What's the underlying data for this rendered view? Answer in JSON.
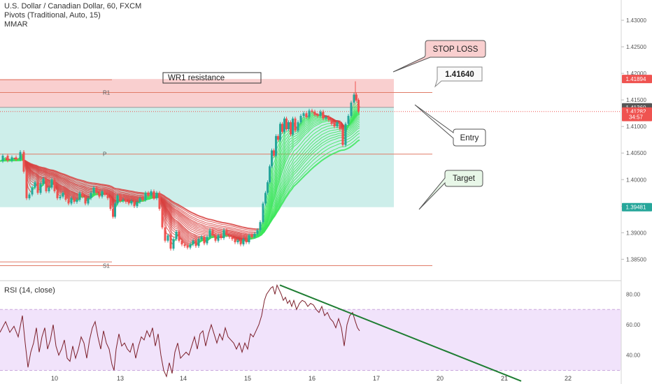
{
  "legend": {
    "title": "U.S. Dollar / Canadian Dollar, 60, FXCM",
    "line2": "Pivots (Traditional, Auto, 15)",
    "line3": "MMAR",
    "rsi": "RSI (14, close)"
  },
  "colors": {
    "bull": "#26a69a",
    "bear": "#ef5350",
    "stop_zone": "#f9cfcf",
    "target_zone": "#cdeeea",
    "rsi_band": "#f1e3fb",
    "trend": "#1e7d32",
    "pivot": "#e07b67"
  },
  "chart_data": [
    {
      "type": "candlestick",
      "title": "U.S. Dollar / Canadian Dollar, 60, FXCM",
      "x_ticks": [
        "10",
        "13",
        "14",
        "15",
        "16",
        "17",
        "20",
        "21",
        "22"
      ],
      "y_ticks": [
        "1.38500",
        "1.39000",
        "1.39500",
        "1.40000",
        "1.40500",
        "1.41000",
        "1.41500",
        "1.42000",
        "1.42500",
        "1.43000"
      ],
      "ylim": [
        1.3815,
        1.4325
      ],
      "price_labels": [
        {
          "value": 1.41894,
          "text": "1.41894",
          "color": "#ef5350"
        },
        {
          "value": 1.4136,
          "text": "1.41360",
          "color": "#555555"
        },
        {
          "value": 1.41282,
          "text": "1.41282",
          "color": "#ef5350"
        },
        {
          "value": 1.41178,
          "text": "34:57",
          "color": "#ef5350"
        },
        {
          "value": 1.39481,
          "text": "1.39481",
          "color": "#26a69a"
        }
      ],
      "pivots": [
        {
          "name": "R1",
          "value": 1.4164
        },
        {
          "name": "P",
          "value": 1.4048
        },
        {
          "name": "S1",
          "value": 1.3838
        }
      ],
      "annotations": {
        "wr1": "WR1 resistance",
        "stop_loss": "STOP LOSS",
        "entry_value": "1.41640",
        "entry": "Entry",
        "target": "Target"
      },
      "stop_zone": {
        "from": 1.4136,
        "to": 1.41894
      },
      "target_zone": {
        "from": 1.39481,
        "to": 1.4136
      },
      "close_path": [
        [
          0,
          1.4035
        ],
        [
          8,
          1.4045
        ],
        [
          14,
          1.4036
        ],
        [
          20,
          1.4042
        ],
        [
          26,
          1.4038
        ],
        [
          32,
          1.4052
        ],
        [
          36,
          1.4015
        ],
        [
          40,
          1.3965
        ],
        [
          44,
          1.3972
        ],
        [
          48,
          1.3985
        ],
        [
          52,
          1.3995
        ],
        [
          56,
          1.3975
        ],
        [
          60,
          1.3992
        ],
        [
          64,
          1.4002
        ],
        [
          68,
          1.3978
        ],
        [
          72,
          1.3985
        ],
        [
          76,
          1.4
        ],
        [
          80,
          1.3978
        ],
        [
          84,
          1.3965
        ],
        [
          88,
          1.3968
        ],
        [
          92,
          1.3975
        ],
        [
          96,
          1.3962
        ],
        [
          100,
          1.3955
        ],
        [
          104,
          1.3965
        ],
        [
          108,
          1.3958
        ],
        [
          112,
          1.3962
        ],
        [
          116,
          1.3975
        ],
        [
          120,
          1.3968
        ],
        [
          124,
          1.3955
        ],
        [
          128,
          1.3965
        ],
        [
          132,
          1.3975
        ],
        [
          136,
          1.3985
        ],
        [
          140,
          1.3975
        ],
        [
          144,
          1.3968
        ],
        [
          148,
          1.3978
        ],
        [
          152,
          1.3972
        ],
        [
          156,
          1.3965
        ],
        [
          160,
          1.3945
        ],
        [
          163,
          1.393
        ],
        [
          166,
          1.3955
        ],
        [
          170,
          1.397
        ],
        [
          174,
          1.396
        ],
        [
          178,
          1.3962
        ],
        [
          182,
          1.3958
        ],
        [
          186,
          1.3955
        ],
        [
          190,
          1.396
        ],
        [
          194,
          1.395
        ],
        [
          198,
          1.3958
        ],
        [
          202,
          1.3965
        ],
        [
          206,
          1.3962
        ],
        [
          210,
          1.3975
        ],
        [
          214,
          1.397
        ],
        [
          218,
          1.3978
        ],
        [
          222,
          1.3965
        ],
        [
          226,
          1.3975
        ],
        [
          230,
          1.3945
        ],
        [
          234,
          1.391
        ],
        [
          238,
          1.3885
        ],
        [
          242,
          1.3895
        ],
        [
          246,
          1.387
        ],
        [
          250,
          1.3888
        ],
        [
          254,
          1.3902
        ],
        [
          258,
          1.3885
        ],
        [
          262,
          1.3878
        ],
        [
          266,
          1.3875
        ],
        [
          270,
          1.3872
        ],
        [
          274,
          1.3878
        ],
        [
          278,
          1.3885
        ],
        [
          282,
          1.3875
        ],
        [
          286,
          1.3888
        ],
        [
          290,
          1.3892
        ],
        [
          294,
          1.388
        ],
        [
          298,
          1.3892
        ],
        [
          302,
          1.3905
        ],
        [
          306,
          1.3895
        ],
        [
          310,
          1.3885
        ],
        [
          314,
          1.3895
        ],
        [
          318,
          1.389
        ],
        [
          322,
          1.3905
        ],
        [
          326,
          1.3895
        ],
        [
          330,
          1.3892
        ],
        [
          334,
          1.3888
        ],
        [
          338,
          1.3882
        ],
        [
          342,
          1.3885
        ],
        [
          346,
          1.3878
        ],
        [
          350,
          1.3888
        ],
        [
          354,
          1.3882
        ],
        [
          358,
          1.3895
        ],
        [
          362,
          1.3892
        ],
        [
          366,
          1.3898
        ],
        [
          370,
          1.3905
        ],
        [
          374,
          1.392
        ],
        [
          378,
          1.3955
        ],
        [
          381,
          1.3975
        ],
        [
          384,
          1.3995
        ],
        [
          387,
          1.4025
        ],
        [
          390,
          1.4055
        ],
        [
          393,
          1.4045
        ],
        [
          396,
          1.4082
        ],
        [
          399,
          1.4075
        ],
        [
          402,
          1.4105
        ],
        [
          405,
          1.409
        ],
        [
          408,
          1.4115
        ],
        [
          411,
          1.4095
        ],
        [
          414,
          1.4108
        ],
        [
          417,
          1.4085
        ],
        [
          420,
          1.4115
        ],
        [
          424,
          1.4092
        ],
        [
          428,
          1.4108
        ],
        [
          432,
          1.412
        ],
        [
          436,
          1.4125
        ],
        [
          440,
          1.4118
        ],
        [
          444,
          1.413
        ],
        [
          448,
          1.4128
        ],
        [
          452,
          1.4122
        ],
        [
          456,
          1.412
        ],
        [
          460,
          1.4128
        ],
        [
          464,
          1.4115
        ],
        [
          468,
          1.4118
        ],
        [
          472,
          1.4112
        ],
        [
          476,
          1.4105
        ],
        [
          480,
          1.41
        ],
        [
          484,
          1.4108
        ],
        [
          488,
          1.4095
        ],
        [
          492,
          1.4065
        ],
        [
          496,
          1.4105
        ],
        [
          500,
          1.412
        ],
        [
          504,
          1.4145
        ],
        [
          508,
          1.416
        ],
        [
          511,
          1.415
        ],
        [
          514,
          1.4128
        ]
      ]
    },
    {
      "type": "line",
      "title": "RSI (14, close)",
      "y_ticks": [
        "40.00",
        "60.00",
        "80.00"
      ],
      "ylim": [
        22,
        88
      ],
      "band": [
        30,
        70
      ],
      "trendline": [
        [
          400,
          86
        ],
        [
          745,
          23
        ]
      ],
      "rsi_path": [
        [
          0,
          55
        ],
        [
          8,
          62
        ],
        [
          14,
          55
        ],
        [
          20,
          59
        ],
        [
          26,
          52
        ],
        [
          32,
          66
        ],
        [
          36,
          48
        ],
        [
          40,
          32
        ],
        [
          44,
          42
        ],
        [
          48,
          48
        ],
        [
          52,
          58
        ],
        [
          56,
          42
        ],
        [
          60,
          52
        ],
        [
          64,
          58
        ],
        [
          68,
          44
        ],
        [
          72,
          50
        ],
        [
          76,
          60
        ],
        [
          80,
          46
        ],
        [
          84,
          40
        ],
        [
          88,
          44
        ],
        [
          92,
          50
        ],
        [
          96,
          38
        ],
        [
          100,
          36
        ],
        [
          104,
          46
        ],
        [
          108,
          38
        ],
        [
          112,
          44
        ],
        [
          116,
          52
        ],
        [
          120,
          48
        ],
        [
          124,
          38
        ],
        [
          128,
          50
        ],
        [
          132,
          58
        ],
        [
          136,
          62
        ],
        [
          140,
          52
        ],
        [
          144,
          44
        ],
        [
          148,
          56
        ],
        [
          152,
          48
        ],
        [
          156,
          44
        ],
        [
          160,
          34
        ],
        [
          163,
          30
        ],
        [
          166,
          44
        ],
        [
          170,
          54
        ],
        [
          174,
          46
        ],
        [
          178,
          48
        ],
        [
          182,
          44
        ],
        [
          186,
          42
        ],
        [
          190,
          48
        ],
        [
          194,
          38
        ],
        [
          198,
          46
        ],
        [
          202,
          52
        ],
        [
          206,
          50
        ],
        [
          210,
          56
        ],
        [
          214,
          52
        ],
        [
          218,
          58
        ],
        [
          222,
          46
        ],
        [
          226,
          54
        ],
        [
          230,
          40
        ],
        [
          234,
          30
        ],
        [
          238,
          26
        ],
        [
          242,
          35
        ],
        [
          246,
          28
        ],
        [
          250,
          42
        ],
        [
          254,
          48
        ],
        [
          258,
          38
        ],
        [
          262,
          40
        ],
        [
          266,
          42
        ],
        [
          270,
          40
        ],
        [
          274,
          46
        ],
        [
          278,
          52
        ],
        [
          282,
          44
        ],
        [
          286,
          54
        ],
        [
          290,
          56
        ],
        [
          294,
          46
        ],
        [
          298,
          54
        ],
        [
          302,
          60
        ],
        [
          306,
          54
        ],
        [
          310,
          48
        ],
        [
          314,
          54
        ],
        [
          318,
          50
        ],
        [
          322,
          58
        ],
        [
          326,
          52
        ],
        [
          330,
          50
        ],
        [
          334,
          48
        ],
        [
          338,
          44
        ],
        [
          342,
          48
        ],
        [
          346,
          42
        ],
        [
          350,
          48
        ],
        [
          354,
          44
        ],
        [
          358,
          54
        ],
        [
          362,
          52
        ],
        [
          366,
          56
        ],
        [
          370,
          60
        ],
        [
          374,
          66
        ],
        [
          378,
          76
        ],
        [
          381,
          80
        ],
        [
          384,
          82
        ],
        [
          387,
          84
        ],
        [
          390,
          85
        ],
        [
          393,
          80
        ],
        [
          396,
          86
        ],
        [
          399,
          83
        ],
        [
          402,
          80
        ],
        [
          405,
          76
        ],
        [
          408,
          78
        ],
        [
          411,
          74
        ],
        [
          414,
          76
        ],
        [
          417,
          72
        ],
        [
          420,
          76
        ],
        [
          424,
          70
        ],
        [
          428,
          74
        ],
        [
          432,
          76
        ],
        [
          436,
          75
        ],
        [
          440,
          72
        ],
        [
          444,
          74
        ],
        [
          448,
          73
        ],
        [
          452,
          70
        ],
        [
          456,
          68
        ],
        [
          460,
          72
        ],
        [
          464,
          66
        ],
        [
          468,
          68
        ],
        [
          472,
          64
        ],
        [
          476,
          62
        ],
        [
          480,
          58
        ],
        [
          484,
          64
        ],
        [
          488,
          58
        ],
        [
          492,
          46
        ],
        [
          496,
          60
        ],
        [
          500,
          66
        ],
        [
          504,
          68
        ],
        [
          508,
          62
        ],
        [
          511,
          58
        ],
        [
          514,
          56
        ]
      ]
    }
  ]
}
